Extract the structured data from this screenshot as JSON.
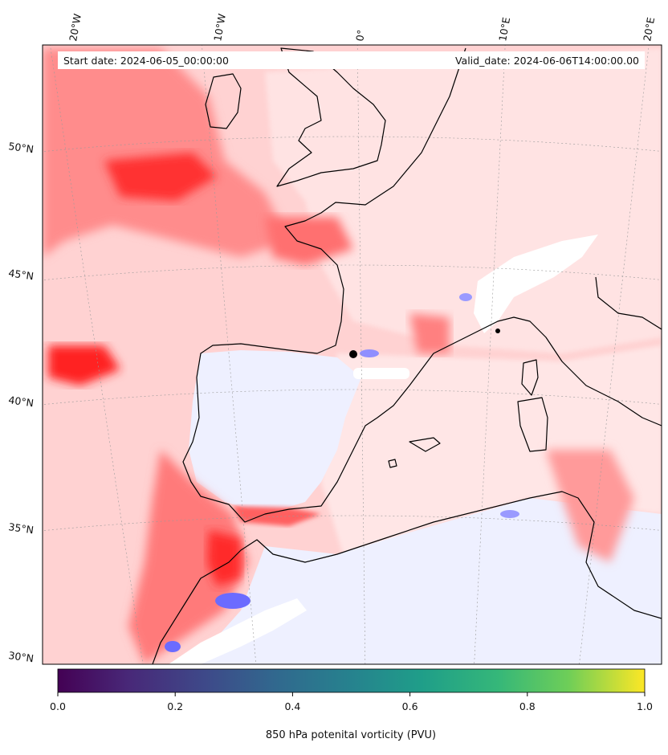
{
  "header": {
    "start_label": "Start date: 2024-06-05_00:00:00",
    "valid_label": "Valid_date: 2024-06-06T14:00:00.00"
  },
  "map": {
    "projection": "conic",
    "region": "Western Europe / Iberia / Western Mediterranean",
    "longitude_labels": [
      "20°W",
      "10°W",
      "0°",
      "10°E",
      "20°E"
    ],
    "latitude_labels": [
      "50°N",
      "45°N",
      "40°N",
      "35°N",
      "30°N"
    ],
    "field": "850 hPa potential vorticity",
    "colors": {
      "ocean_background": "#ffd2d2",
      "strong_positive": "#ff1a1a",
      "medium_positive": "#ff7a7a",
      "weak_positive": "#ffe6e6",
      "near_zero": "#eef0ff",
      "negative": "#6666ff",
      "missing": "#ffffff",
      "coastline": "#000000",
      "graticule": "#9a9a9a"
    }
  },
  "colorbar": {
    "cmap": "viridis",
    "min": 0.0,
    "max": 1.0,
    "tick_labels": [
      "0.0",
      "0.2",
      "0.4",
      "0.6",
      "0.8",
      "1.0"
    ],
    "label": "850 hPa potenital vorticity (PVU)"
  }
}
